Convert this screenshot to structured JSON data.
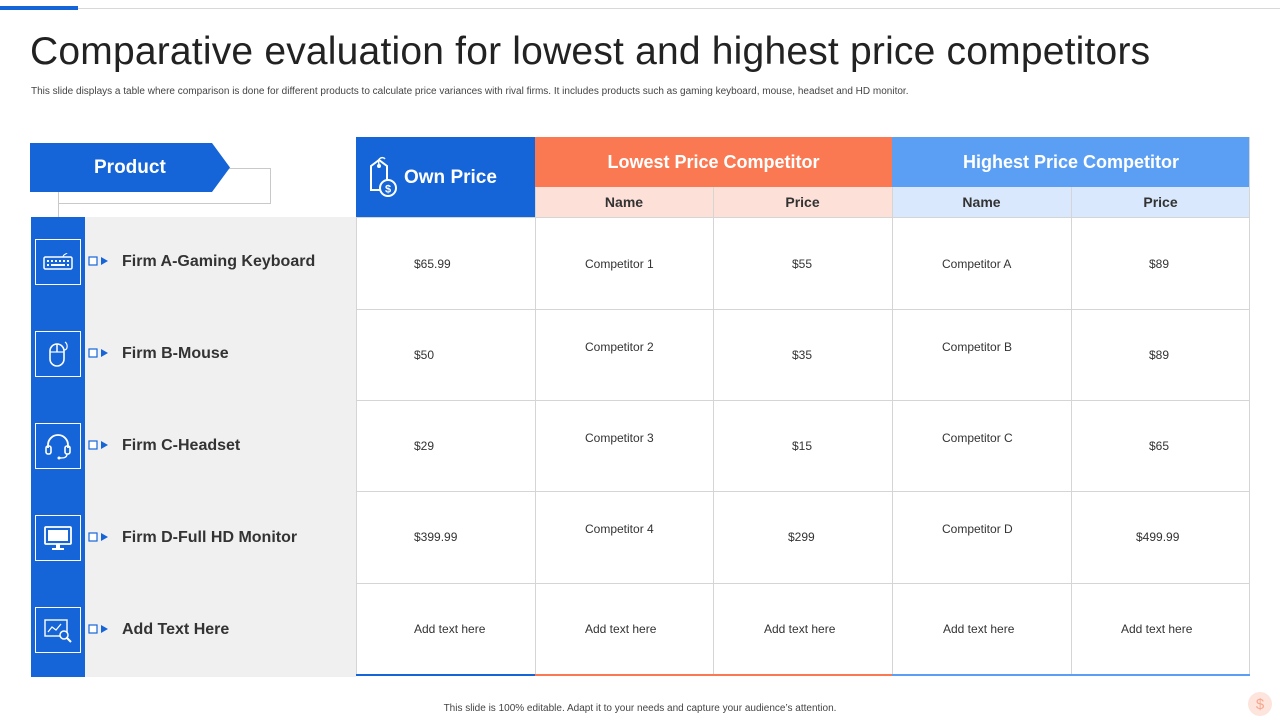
{
  "title": "Comparative evaluation for lowest and highest price competitors",
  "subtitle": "This slide displays a table where comparison is done for different products to calculate price variances with rival firms. It includes products such as gaming keyboard, mouse, headset and HD monitor.",
  "footer": "This slide is 100% editable. Adapt it to your needs and capture your audience’s attention.",
  "colors": {
    "primary": "#1565d8",
    "lowest": "#fb7952",
    "highest": "#5b9ff5"
  },
  "table": {
    "product_header": "Product",
    "own_price_header": "Own Price",
    "lowest_header": "Lowest Price Competitor",
    "highest_header": "Highest Price Competitor",
    "sub_name": "Name",
    "sub_price": "Price",
    "rows": [
      {
        "icon": "keyboard-icon",
        "product": "Firm A-Gaming Keyboard",
        "own_price": "$65.99",
        "low_name": "Competitor  1",
        "low_price": "$55",
        "high_name": "Competitor  A",
        "high_price": "$89"
      },
      {
        "icon": "mouse-icon",
        "product": "Firm B-Mouse",
        "own_price": "$50",
        "low_name": "Competitor  2",
        "low_price": "$35",
        "high_name": "Competitor  B",
        "high_price": "$89"
      },
      {
        "icon": "headset-icon",
        "product": "Firm C-Headset",
        "own_price": "$29",
        "low_name": "Competitor  3",
        "low_price": "$15",
        "high_name": "Competitor  C",
        "high_price": "$65"
      },
      {
        "icon": "monitor-icon",
        "product": "Firm D-Full HD Monitor",
        "own_price": "$399.99",
        "low_name": "Competitor  4",
        "low_price": "$299",
        "high_name": "Competitor  D",
        "high_price": "$499.99"
      },
      {
        "icon": "analytics-search-icon",
        "product": "Add Text Here",
        "own_price": "Add text here",
        "low_name": "Add text here",
        "low_price": "Add text here",
        "high_name": "Add text here",
        "high_price": "Add text here"
      }
    ]
  }
}
